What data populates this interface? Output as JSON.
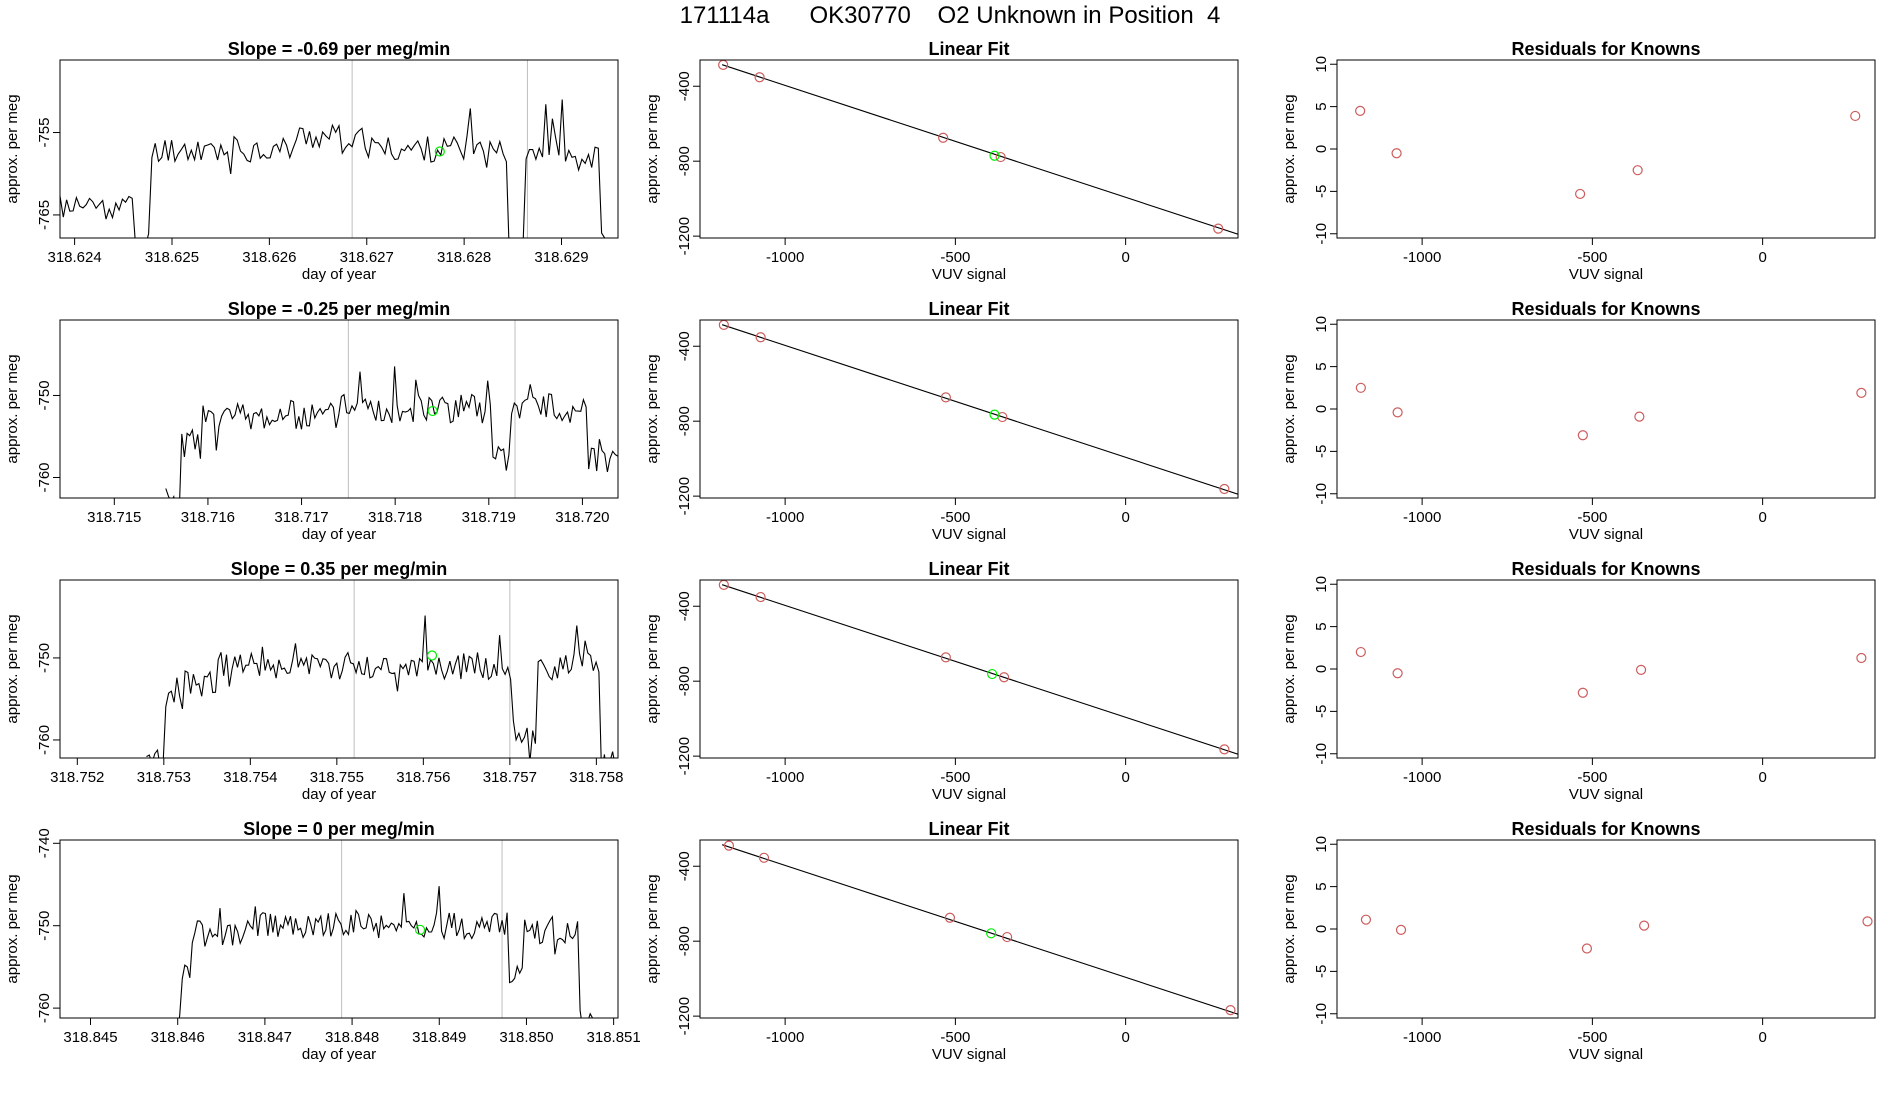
{
  "page_title": "171114a      OK30770    O2 Unknown in Position  4",
  "colors": {
    "axis": "#000000",
    "line": "#000000",
    "marker_known": "#cd5c5c",
    "marker_unknown": "#00ee00",
    "vline": "#bebebe"
  },
  "chart_data": [
    {
      "id": "r1-trace",
      "type": "line",
      "title": "Slope =  -0.69  per meg/min",
      "xlabel": "day of year",
      "ylabel": "approx. per meg",
      "xlim": [
        318.62385,
        318.62958
      ],
      "ylim": [
        -767.8,
        -746.2
      ],
      "x_ticks": [
        318.624,
        318.625,
        318.626,
        318.627,
        318.628,
        318.629
      ],
      "x_tick_labels": [
        "318.624",
        "318.625",
        "318.626",
        "318.627",
        "318.628",
        "318.629"
      ],
      "y_ticks": [
        -765,
        -755
      ],
      "y_tick_labels": [
        "-765",
        "-755"
      ],
      "vlines": [
        318.62685,
        318.62865
      ],
      "trace": {
        "x0": 318.62385,
        "x1": 318.62958,
        "seed": 11,
        "base": -756.5,
        "noise": 1.6,
        "spike": 4.5,
        "segments": [
          [
            0.0,
            0.13,
            -764
          ],
          [
            0.13,
            0.16,
            -768.5
          ],
          [
            0.16,
            0.42,
            -757
          ],
          [
            0.42,
            0.55,
            -755.5
          ],
          [
            0.55,
            0.8,
            -757
          ],
          [
            0.8,
            0.83,
            -768.5
          ],
          [
            0.83,
            0.9,
            -757
          ],
          [
            0.9,
            0.965,
            -758
          ],
          [
            0.965,
            1.0,
            -768.5
          ]
        ]
      },
      "highlight": {
        "x": 318.62775,
        "y": -757.3
      }
    },
    {
      "id": "r1-fit",
      "type": "scatter",
      "title": "Linear Fit",
      "xlabel": "VUV signal",
      "ylabel": "approx. per meg",
      "xlim": [
        -1250,
        330
      ],
      "ylim": [
        -1210,
        -260
      ],
      "x_ticks": [
        -1000,
        -500,
        0
      ],
      "x_tick_labels": [
        "-1000",
        "-500",
        "0"
      ],
      "y_ticks": [
        -1200,
        -800,
        -400
      ],
      "y_tick_labels": [
        "-1200",
        "-800",
        "-400"
      ],
      "fit_line": {
        "x": [
          -1185,
          330
        ],
        "y": [
          -285,
          -1190
        ]
      },
      "points_known": {
        "x": [
          -1182,
          -1075,
          -536,
          -367,
          272
        ],
        "y": [
          -286,
          -352,
          -675,
          -778,
          -1160
        ]
      },
      "point_unknown": {
        "x": -385,
        "y": -771
      }
    },
    {
      "id": "r1-resid",
      "type": "scatter",
      "title": "Residuals for Knowns",
      "xlabel": "VUV signal",
      "ylabel": "approx. per meg",
      "xlim": [
        -1250,
        330
      ],
      "ylim": [
        -10.5,
        10.5
      ],
      "x_ticks": [
        -1000,
        -500,
        0
      ],
      "x_tick_labels": [
        "-1000",
        "-500",
        "0"
      ],
      "y_ticks": [
        -10,
        -5,
        0,
        5,
        10
      ],
      "y_tick_labels": [
        "-10",
        "-5",
        "0",
        "5",
        "10"
      ],
      "points_known": {
        "x": [
          -1182,
          -1075,
          -536,
          -367,
          272
        ],
        "y": [
          4.5,
          -0.5,
          -5.3,
          -2.5,
          3.9
        ]
      }
    },
    {
      "id": "r2-trace",
      "type": "line",
      "title": "Slope =  -0.25  per meg/min",
      "xlabel": "day of year",
      "ylabel": "approx. per meg",
      "xlim": [
        318.71442,
        318.72038
      ],
      "ylim": [
        -762.5,
        -740.8
      ],
      "x_ticks": [
        318.715,
        318.716,
        318.717,
        318.718,
        318.719,
        318.72
      ],
      "x_tick_labels": [
        "318.715",
        "318.716",
        "318.717",
        "318.718",
        "318.719",
        "318.720"
      ],
      "y_ticks": [
        -760,
        -750
      ],
      "y_tick_labels": [
        "-760",
        "-750"
      ],
      "vlines": [
        318.7175,
        318.71928
      ],
      "trace": {
        "x0": 318.71555,
        "x1": 318.72038,
        "seed": 23,
        "base": -752.5,
        "noise": 1.9,
        "spike": 6,
        "segments": [
          [
            0.0,
            0.03,
            -763
          ],
          [
            0.03,
            0.08,
            -756
          ],
          [
            0.08,
            0.38,
            -752.5
          ],
          [
            0.38,
            0.72,
            -751.5
          ],
          [
            0.72,
            0.76,
            -758
          ],
          [
            0.76,
            0.93,
            -751.5
          ],
          [
            0.93,
            1.0,
            -757.5
          ]
        ]
      },
      "highlight": {
        "x": 318.7184,
        "y": -751.9
      }
    },
    {
      "id": "r2-fit",
      "type": "scatter",
      "title": "Linear Fit",
      "xlabel": "VUV signal",
      "ylabel": "approx. per meg",
      "xlim": [
        -1250,
        330
      ],
      "ylim": [
        -1210,
        -260
      ],
      "x_ticks": [
        -1000,
        -500,
        0
      ],
      "x_tick_labels": [
        "-1000",
        "-500",
        "0"
      ],
      "y_ticks": [
        -1200,
        -800,
        -400
      ],
      "y_tick_labels": [
        "-1200",
        "-800",
        "-400"
      ],
      "fit_line": {
        "x": [
          -1185,
          330
        ],
        "y": [
          -285,
          -1190
        ]
      },
      "points_known": {
        "x": [
          -1180,
          -1072,
          -528,
          -362,
          290
        ],
        "y": [
          -286,
          -352,
          -673,
          -778,
          -1162
        ]
      },
      "point_unknown": {
        "x": -385,
        "y": -765
      }
    },
    {
      "id": "r2-resid",
      "type": "scatter",
      "title": "Residuals for Knowns",
      "xlabel": "VUV signal",
      "ylabel": "approx. per meg",
      "xlim": [
        -1250,
        330
      ],
      "ylim": [
        -10.5,
        10.5
      ],
      "x_ticks": [
        -1000,
        -500,
        0
      ],
      "x_tick_labels": [
        "-1000",
        "-500",
        "0"
      ],
      "y_ticks": [
        -10,
        -5,
        0,
        5,
        10
      ],
      "y_tick_labels": [
        "-10",
        "-5",
        "0",
        "5",
        "10"
      ],
      "points_known": {
        "x": [
          -1180,
          -1072,
          -528,
          -362,
          290
        ],
        "y": [
          2.5,
          -0.4,
          -3.1,
          -0.9,
          1.9
        ]
      }
    },
    {
      "id": "r3-trace",
      "type": "line",
      "title": "Slope =  0.35  per meg/min",
      "xlabel": "day of year",
      "ylabel": "approx. per meg",
      "xlim": [
        318.7518,
        318.75825
      ],
      "ylim": [
        -762.2,
        -740.5
      ],
      "x_ticks": [
        318.752,
        318.753,
        318.754,
        318.755,
        318.756,
        318.757,
        318.758
      ],
      "x_tick_labels": [
        "318.752",
        "318.753",
        "318.754",
        "318.755",
        "318.756",
        "318.757",
        "318.758"
      ],
      "y_ticks": [
        -760,
        -750
      ],
      "y_tick_labels": [
        "-760",
        "-750"
      ],
      "vlines": [
        318.7552,
        318.757
      ],
      "trace": {
        "x0": 318.7528,
        "x1": 318.75822,
        "seed": 37,
        "base": -751,
        "noise": 1.7,
        "spike": 4.5,
        "segments": [
          [
            0.0,
            0.04,
            -762.5
          ],
          [
            0.04,
            0.08,
            -755.5
          ],
          [
            0.08,
            0.15,
            -753
          ],
          [
            0.15,
            0.78,
            -751
          ],
          [
            0.78,
            0.83,
            -759
          ],
          [
            0.83,
            0.97,
            -751
          ],
          [
            0.97,
            1.0,
            -763
          ]
        ]
      },
      "highlight": {
        "x": 318.7561,
        "y": -749.7
      }
    },
    {
      "id": "r3-fit",
      "type": "scatter",
      "title": "Linear Fit",
      "xlabel": "VUV signal",
      "ylabel": "approx. per meg",
      "xlim": [
        -1250,
        330
      ],
      "ylim": [
        -1210,
        -260
      ],
      "x_ticks": [
        -1000,
        -500,
        0
      ],
      "x_tick_labels": [
        "-1000",
        "-500",
        "0"
      ],
      "y_ticks": [
        -1200,
        -800,
        -400
      ],
      "y_tick_labels": [
        "-1200",
        "-800",
        "-400"
      ],
      "fit_line": {
        "x": [
          -1185,
          330
        ],
        "y": [
          -285,
          -1190
        ]
      },
      "points_known": {
        "x": [
          -1180,
          -1072,
          -528,
          -357,
          290
        ],
        "y": [
          -286,
          -351,
          -673,
          -779,
          -1164
        ]
      },
      "point_unknown": {
        "x": -392,
        "y": -762
      }
    },
    {
      "id": "r3-resid",
      "type": "scatter",
      "title": "Residuals for Knowns",
      "xlabel": "VUV signal",
      "ylabel": "approx. per meg",
      "xlim": [
        -1250,
        330
      ],
      "ylim": [
        -10.5,
        10.5
      ],
      "x_ticks": [
        -1000,
        -500,
        0
      ],
      "x_tick_labels": [
        "-1000",
        "-500",
        "0"
      ],
      "y_ticks": [
        -10,
        -5,
        0,
        5,
        10
      ],
      "y_tick_labels": [
        "-10",
        "-5",
        "0",
        "5",
        "10"
      ],
      "points_known": {
        "x": [
          -1180,
          -1072,
          -528,
          -357,
          290
        ],
        "y": [
          2.0,
          -0.5,
          -2.8,
          -0.1,
          1.3
        ]
      }
    },
    {
      "id": "r4-trace",
      "type": "line",
      "title": "Slope =  0  per meg/min",
      "xlabel": "day of year",
      "ylabel": "approx. per meg",
      "xlim": [
        318.84465,
        318.85105
      ],
      "ylim": [
        -761.2,
        -739.6
      ],
      "x_ticks": [
        318.845,
        318.846,
        318.847,
        318.848,
        318.849,
        318.85,
        318.851
      ],
      "x_tick_labels": [
        "318.845",
        "318.846",
        "318.847",
        "318.848",
        "318.849",
        "318.850",
        "318.851"
      ],
      "y_ticks": [
        -760,
        -750,
        -740
      ],
      "y_tick_labels": [
        "-760",
        "-750",
        "-740"
      ],
      "vlines": [
        318.84788,
        318.84972
      ],
      "trace": {
        "x0": 318.84585,
        "x1": 318.85076,
        "seed": 53,
        "base": -750,
        "noise": 1.6,
        "spike": 4.5,
        "segments": [
          [
            0.0,
            0.04,
            -761.5
          ],
          [
            0.04,
            0.06,
            -755
          ],
          [
            0.06,
            0.2,
            -751
          ],
          [
            0.2,
            0.8,
            -750
          ],
          [
            0.8,
            0.84,
            -756
          ],
          [
            0.84,
            0.97,
            -750.5
          ],
          [
            0.97,
            1.0,
            -761.5
          ]
        ]
      },
      "highlight": {
        "x": 318.84878,
        "y": -750.5
      }
    },
    {
      "id": "r4-fit",
      "type": "scatter",
      "title": "Linear Fit",
      "xlabel": "VUV signal",
      "ylabel": "approx. per meg",
      "xlim": [
        -1250,
        330
      ],
      "ylim": [
        -1210,
        -260
      ],
      "x_ticks": [
        -1000,
        -500,
        0
      ],
      "x_tick_labels": [
        "-1000",
        "-500",
        "0"
      ],
      "y_ticks": [
        -1200,
        -800,
        -400
      ],
      "y_tick_labels": [
        "-1200",
        "-800",
        "-400"
      ],
      "fit_line": {
        "x": [
          -1185,
          330
        ],
        "y": [
          -285,
          -1190
        ]
      },
      "points_known": {
        "x": [
          -1165,
          -1062,
          -516,
          -348,
          308
        ],
        "y": [
          -290,
          -355,
          -675,
          -778,
          -1168
        ]
      },
      "point_unknown": {
        "x": -395,
        "y": -758
      }
    },
    {
      "id": "r4-resid",
      "type": "scatter",
      "title": "Residuals for Knowns",
      "xlabel": "VUV signal",
      "ylabel": "approx. per meg",
      "xlim": [
        -1250,
        330
      ],
      "ylim": [
        -10.5,
        10.5
      ],
      "x_ticks": [
        -1000,
        -500,
        0
      ],
      "x_tick_labels": [
        "-1000",
        "-500",
        "0"
      ],
      "y_ticks": [
        -10,
        -5,
        0,
        5,
        10
      ],
      "y_tick_labels": [
        "-10",
        "-5",
        "0",
        "5",
        "10"
      ],
      "points_known": {
        "x": [
          -1165,
          -1062,
          -516,
          -348,
          308
        ],
        "y": [
          1.1,
          -0.1,
          -2.3,
          0.4,
          0.9
        ]
      }
    }
  ]
}
